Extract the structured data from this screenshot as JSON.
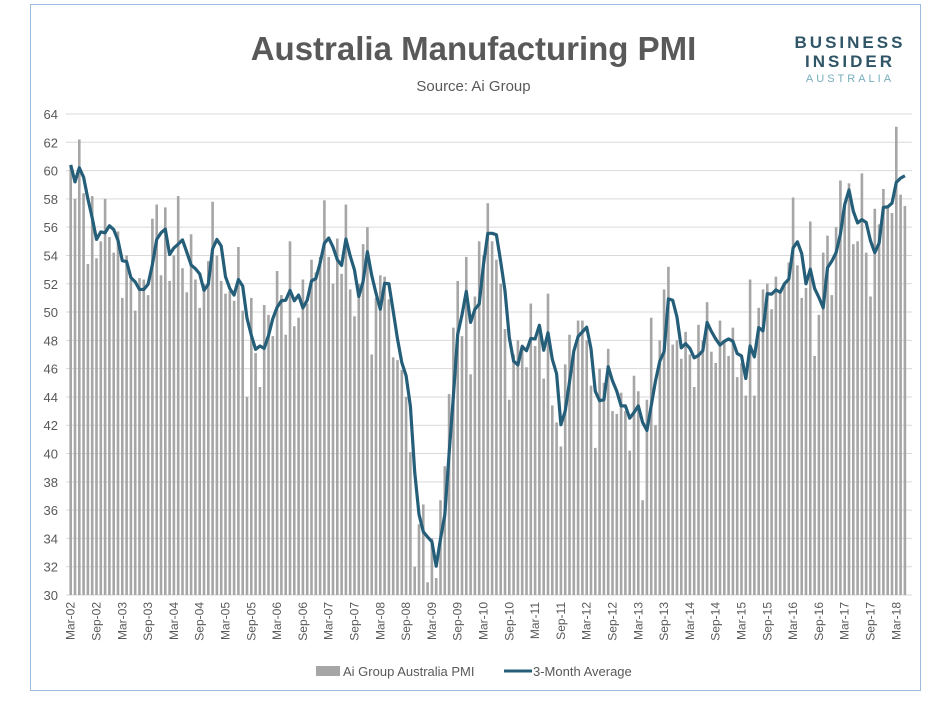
{
  "chart_data": {
    "type": "bar",
    "title": "Australia Manufacturing PMI",
    "subtitle": "Source: Ai Group",
    "xlabel": "",
    "ylabel": "",
    "ylim": [
      30,
      64
    ],
    "yticks": [
      30,
      32,
      34,
      36,
      38,
      40,
      42,
      44,
      46,
      48,
      50,
      52,
      54,
      56,
      58,
      60,
      62,
      64
    ],
    "grid": "horizontal",
    "legend_position": "bottom",
    "x": [
      "Mar-02",
      "Apr-02",
      "May-02",
      "Jun-02",
      "Jul-02",
      "Aug-02",
      "Sep-02",
      "Oct-02",
      "Nov-02",
      "Dec-02",
      "Jan-03",
      "Feb-03",
      "Mar-03",
      "Apr-03",
      "May-03",
      "Jun-03",
      "Jul-03",
      "Aug-03",
      "Sep-03",
      "Oct-03",
      "Nov-03",
      "Dec-03",
      "Jan-04",
      "Feb-04",
      "Mar-04",
      "Apr-04",
      "May-04",
      "Jun-04",
      "Jul-04",
      "Aug-04",
      "Sep-04",
      "Oct-04",
      "Nov-04",
      "Dec-04",
      "Jan-05",
      "Feb-05",
      "Mar-05",
      "Apr-05",
      "May-05",
      "Jun-05",
      "Jul-05",
      "Aug-05",
      "Sep-05",
      "Oct-05",
      "Nov-05",
      "Dec-05",
      "Jan-06",
      "Feb-06",
      "Mar-06",
      "Apr-06",
      "May-06",
      "Jun-06",
      "Jul-06",
      "Aug-06",
      "Sep-06",
      "Oct-06",
      "Nov-06",
      "Dec-06",
      "Jan-07",
      "Feb-07",
      "Mar-07",
      "Apr-07",
      "May-07",
      "Jun-07",
      "Jul-07",
      "Aug-07",
      "Sep-07",
      "Oct-07",
      "Nov-07",
      "Dec-07",
      "Jan-08",
      "Feb-08",
      "Mar-08",
      "Apr-08",
      "May-08",
      "Jun-08",
      "Jul-08",
      "Aug-08",
      "Sep-08",
      "Oct-08",
      "Nov-08",
      "Dec-08",
      "Jan-09",
      "Feb-09",
      "Mar-09",
      "Apr-09",
      "May-09",
      "Jun-09",
      "Jul-09",
      "Aug-09",
      "Sep-09",
      "Oct-09",
      "Nov-09",
      "Dec-09",
      "Jan-10",
      "Feb-10",
      "Mar-10",
      "Apr-10",
      "May-10",
      "Jun-10",
      "Jul-10",
      "Aug-10",
      "Sep-10",
      "Oct-10",
      "Nov-10",
      "Dec-10",
      "Jan-11",
      "Feb-11",
      "Mar-11",
      "Apr-11",
      "May-11",
      "Jun-11",
      "Jul-11",
      "Aug-11",
      "Sep-11",
      "Oct-11",
      "Nov-11",
      "Dec-11",
      "Jan-12",
      "Feb-12",
      "Mar-12",
      "Apr-12",
      "May-12",
      "Jun-12",
      "Jul-12",
      "Aug-12",
      "Sep-12",
      "Oct-12",
      "Nov-12",
      "Dec-12",
      "Jan-13",
      "Feb-13",
      "Mar-13",
      "Apr-13",
      "May-13",
      "Jun-13",
      "Jul-13",
      "Aug-13",
      "Sep-13",
      "Oct-13",
      "Nov-13",
      "Dec-13",
      "Jan-14",
      "Feb-14",
      "Mar-14",
      "Apr-14",
      "May-14",
      "Jun-14",
      "Jul-14",
      "Aug-14",
      "Sep-14",
      "Oct-14",
      "Nov-14",
      "Dec-14",
      "Jan-15",
      "Feb-15",
      "Mar-15",
      "Apr-15",
      "May-15",
      "Jun-15",
      "Jul-15",
      "Aug-15",
      "Sep-15",
      "Oct-15",
      "Nov-15",
      "Dec-15",
      "Jan-16",
      "Feb-16",
      "Mar-16",
      "Apr-16",
      "May-16",
      "Jun-16",
      "Jul-16",
      "Aug-16",
      "Sep-16",
      "Oct-16",
      "Nov-16",
      "Dec-16",
      "Jan-17",
      "Feb-17",
      "Mar-17",
      "Apr-17",
      "May-17",
      "Jun-17",
      "Jul-17",
      "Aug-17",
      "Sep-17",
      "Oct-17",
      "Nov-17",
      "Dec-17",
      "Jan-18",
      "Feb-18",
      "Mar-18",
      "Apr-18",
      "May-18"
    ],
    "x_tick_every": 6,
    "series": [
      {
        "name": "Ai Group Australia PMI",
        "type": "bar",
        "color": "#a6a6a6",
        "values": [
          60.4,
          58.0,
          62.2,
          58.4,
          53.4,
          58.2,
          53.8,
          55.0,
          58.0,
          55.3,
          54.2,
          55.7,
          51.0,
          54.0,
          52.3,
          50.1,
          52.4,
          52.3,
          51.2,
          56.6,
          57.6,
          52.6,
          57.4,
          52.2,
          54.0,
          58.2,
          53.1,
          51.4,
          55.5,
          52.3,
          50.3,
          52.0,
          53.6,
          57.8,
          54.0,
          52.2,
          51.3,
          51.5,
          50.8,
          54.6,
          50.1,
          44.0,
          51.0,
          47.1,
          44.7,
          50.5,
          49.8,
          48.3,
          52.9,
          51.2,
          48.4,
          55.0,
          49.0,
          49.6,
          52.3,
          50.6,
          53.7,
          52.8,
          53.9,
          57.9,
          53.9,
          52.0,
          55.2,
          52.7,
          57.6,
          51.6,
          49.7,
          52.0,
          54.8,
          56.0,
          47.0,
          51.0,
          52.6,
          52.5,
          50.9,
          46.8,
          46.6,
          45.9,
          44.0,
          40.1,
          32.0,
          35.0,
          36.4,
          30.9,
          34.0,
          31.2,
          36.7,
          39.1,
          44.2,
          48.9,
          52.2,
          48.3,
          53.9,
          45.6,
          51.1,
          55.0,
          54.0,
          57.7,
          55.0,
          53.7,
          52.0,
          48.8,
          43.8,
          47.0,
          48.0,
          47.7,
          46.1,
          50.6,
          47.6,
          49.0,
          45.3,
          51.3,
          43.4,
          42.2,
          40.5,
          46.3,
          48.4,
          47.0,
          49.4,
          49.4,
          48.0,
          44.8,
          40.4,
          46.0,
          45.0,
          47.4,
          43.0,
          42.8,
          44.3,
          43.0,
          40.2,
          45.5,
          44.4,
          36.7,
          43.8,
          49.6,
          42.0,
          48.0,
          51.6,
          53.2,
          47.7,
          48.0,
          46.7,
          48.6,
          47.0,
          44.7,
          49.1,
          48.0,
          50.7,
          47.2,
          46.4,
          49.4,
          48.0,
          46.9,
          48.9,
          45.4,
          46.4,
          44.1,
          52.3,
          44.1,
          50.3,
          51.6,
          52.0,
          50.2,
          52.5,
          51.5,
          52.0,
          53.5,
          58.1,
          53.3,
          51.0,
          51.7,
          56.4,
          46.9,
          49.8,
          54.2,
          55.4,
          51.2,
          56.0,
          59.3,
          57.5,
          59.1,
          54.8,
          55.0,
          59.8,
          54.2,
          51.1,
          57.3,
          56.2,
          58.7,
          57.4,
          57.0,
          63.1,
          58.3,
          57.5
        ]
      },
      {
        "name": "3-Month Average",
        "type": "line",
        "color": "#255e79",
        "derived_from": "Ai Group Australia PMI",
        "window_months": 3
      }
    ]
  },
  "logo": {
    "line1": "BUSINESS",
    "line2": "INSIDER",
    "line3": "AUSTRALIA"
  }
}
